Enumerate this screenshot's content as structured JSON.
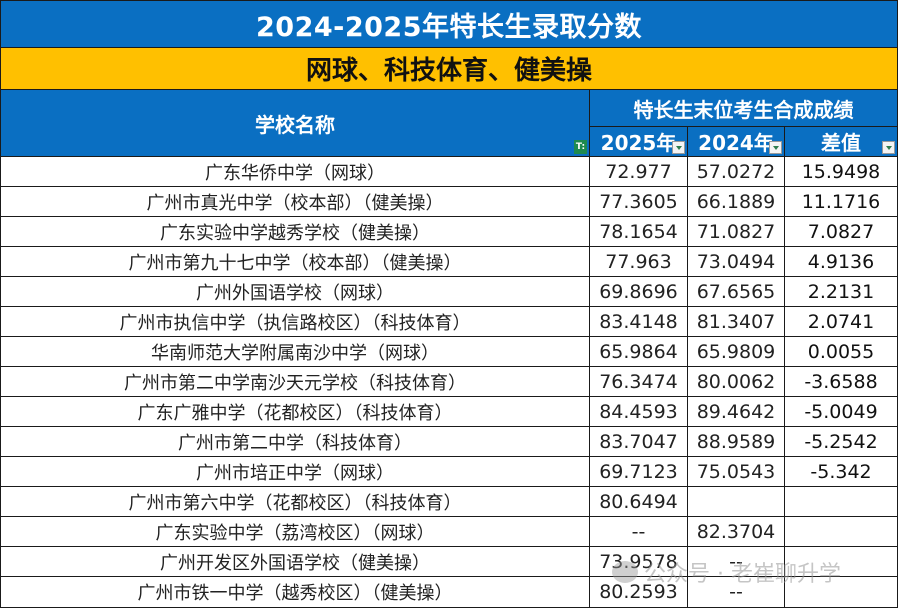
{
  "title": "2024-2025年特长生录取分数",
  "subtitle": "网球、科技体育、健美操",
  "header": {
    "school_name": "学校名称",
    "group_label": "特长生末位考生合成成绩",
    "columns": [
      "2025年",
      "2024年",
      "差值"
    ],
    "filter_active_icon": "T:"
  },
  "rows": [
    {
      "school": "广东华侨中学（网球）",
      "y2025": "72.977",
      "y2024": "57.0272",
      "diff": "15.9498"
    },
    {
      "school": "广州市真光中学（校本部）（健美操）",
      "y2025": "77.3605",
      "y2024": "66.1889",
      "diff": "11.1716"
    },
    {
      "school": "广东实验中学越秀学校（健美操）",
      "y2025": "78.1654",
      "y2024": "71.0827",
      "diff": "7.0827"
    },
    {
      "school": "广州市第九十七中学（校本部）（健美操）",
      "y2025": "77.963",
      "y2024": "73.0494",
      "diff": "4.9136"
    },
    {
      "school": "广州外国语学校（网球）",
      "y2025": "69.8696",
      "y2024": "67.6565",
      "diff": "2.2131"
    },
    {
      "school": "广州市执信中学（执信路校区）（科技体育）",
      "y2025": "83.4148",
      "y2024": "81.3407",
      "diff": "2.0741"
    },
    {
      "school": "华南师范大学附属南沙中学（网球）",
      "y2025": "65.9864",
      "y2024": "65.9809",
      "diff": "0.0055"
    },
    {
      "school": "广州市第二中学南沙天元学校（科技体育）",
      "y2025": "76.3474",
      "y2024": "80.0062",
      "diff": "-3.6588"
    },
    {
      "school": "广东广雅中学（花都校区）（科技体育）",
      "y2025": "84.4593",
      "y2024": "89.4642",
      "diff": "-5.0049"
    },
    {
      "school": "广州市第二中学（科技体育）",
      "y2025": "83.7047",
      "y2024": "88.9589",
      "diff": "-5.2542"
    },
    {
      "school": "广州市培正中学（网球）",
      "y2025": "69.7123",
      "y2024": "75.0543",
      "diff": "-5.342"
    },
    {
      "school": "广州市第六中学（花都校区）（科技体育）",
      "y2025": "80.6494",
      "y2024": "",
      "diff": ""
    },
    {
      "school": "广东实验中学（荔湾校区）（网球）",
      "y2025": "--",
      "y2024": "82.3704",
      "diff": ""
    },
    {
      "school": "广州开发区外国语学校（健美操）",
      "y2025": "73.9578",
      "y2024": "--",
      "diff": ""
    },
    {
      "school": "广州市铁一中学（越秀校区）（健美操）",
      "y2025": "80.2593",
      "y2024": "--",
      "diff": ""
    }
  ],
  "watermark": "公众号 · 老崔聊升学",
  "colors": {
    "header_blue": "#0A6FC2",
    "subtitle_yellow": "#FFC000",
    "filter_green": "#1e8a4f"
  }
}
